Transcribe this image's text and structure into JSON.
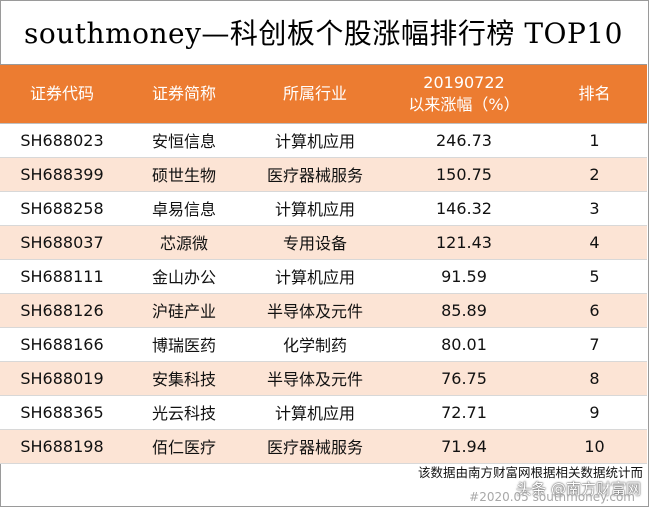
{
  "title": "southmoney—科创板个股涨幅排行榜 TOP10",
  "header": {
    "code": "证券代码",
    "name": "证券简称",
    "industry": "所属行业",
    "gain_line1": "20190722",
    "gain_line2": "以来涨幅（%）",
    "rank": "排名"
  },
  "rows": [
    {
      "code": "SH688023",
      "name": "安恒信息",
      "industry": "计算机应用",
      "gain": "246.73",
      "rank": "1"
    },
    {
      "code": "SH688399",
      "name": "硕世生物",
      "industry": "医疗器械服务",
      "gain": "150.75",
      "rank": "2"
    },
    {
      "code": "SH688258",
      "name": "卓易信息",
      "industry": "计算机应用",
      "gain": "146.32",
      "rank": "3"
    },
    {
      "code": "SH688037",
      "name": "芯源微",
      "industry": "专用设备",
      "gain": "121.43",
      "rank": "4"
    },
    {
      "code": "SH688111",
      "name": "金山办公",
      "industry": "计算机应用",
      "gain": "91.59",
      "rank": "5"
    },
    {
      "code": "SH688126",
      "name": "沪硅产业",
      "industry": "半导体及元件",
      "gain": "85.89",
      "rank": "6"
    },
    {
      "code": "SH688166",
      "name": "博瑞医药",
      "industry": "化学制药",
      "gain": "80.01",
      "rank": "7"
    },
    {
      "code": "SH688019",
      "name": "安集科技",
      "industry": "半导体及元件",
      "gain": "76.75",
      "rank": "8"
    },
    {
      "code": "SH688365",
      "name": "光云科技",
      "industry": "计算机应用",
      "gain": "72.71",
      "rank": "9"
    },
    {
      "code": "SH688198",
      "name": "佰仁医疗",
      "industry": "医疗器械服务",
      "gain": "71.94",
      "rank": "10"
    }
  ],
  "footer_note": "该数据由南方财富网根据相关数据统计而",
  "watermark": "头条 @南方财富网",
  "stamp": "#2020.05 southmoney.com",
  "colors": {
    "header_bg": "#ec7c31",
    "stripe": "#fce4d5"
  }
}
